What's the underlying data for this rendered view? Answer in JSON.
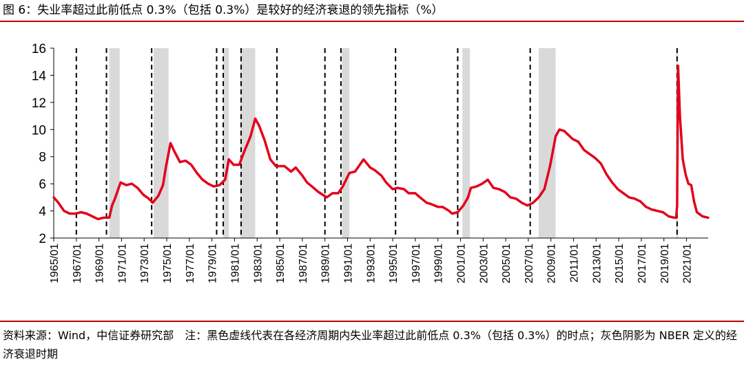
{
  "figure": {
    "title": "图 6：失业率超过此前低点 0.3%（包括 0.3%）是较好的经济衰退的领先指标（%）",
    "source_note": "资料来源：Wind，中信证券研究部　注：黑色虚线代表在各经济周期内失业率超过此前低点 0.3%（包括 0.3%）的时点；灰色阴影为 NBER 定义的经济衰退时期"
  },
  "colors": {
    "rule": "#c00000",
    "series_line": "#e3001b",
    "recession_shade": "#d9d9d9",
    "signal_line": "#000000"
  },
  "chart_data": {
    "type": "line",
    "title": "",
    "xlabel": "",
    "ylabel": "",
    "ylim": [
      2,
      16
    ],
    "yticks": [
      2,
      4,
      6,
      8,
      10,
      12,
      14,
      16
    ],
    "xlim": [
      "1965/01",
      "2022/12"
    ],
    "xticks": [
      "1965/01",
      "1967/01",
      "1969/01",
      "1971/01",
      "1973/01",
      "1975/01",
      "1977/01",
      "1979/01",
      "1981/01",
      "1983/01",
      "1985/01",
      "1987/01",
      "1989/01",
      "1991/01",
      "1993/01",
      "1995/01",
      "1997/01",
      "1999/01",
      "2001/01",
      "2003/01",
      "2005/01",
      "2007/01",
      "2009/01",
      "2011/01",
      "2013/01",
      "2015/01",
      "2017/01",
      "2019/01",
      "2021/01"
    ],
    "grid": false,
    "legend": "none",
    "series": [
      {
        "values": [
          {
            "x": "1965/01",
            "y": 5.0
          },
          {
            "x": "1965/06",
            "y": 4.6
          },
          {
            "x": "1965/12",
            "y": 4.0
          },
          {
            "x": "1966/06",
            "y": 3.8
          },
          {
            "x": "1966/12",
            "y": 3.8
          },
          {
            "x": "1967/06",
            "y": 3.9
          },
          {
            "x": "1967/12",
            "y": 3.8
          },
          {
            "x": "1968/06",
            "y": 3.6
          },
          {
            "x": "1968/12",
            "y": 3.4
          },
          {
            "x": "1969/06",
            "y": 3.5
          },
          {
            "x": "1969/12",
            "y": 3.5
          },
          {
            "x": "1970/03",
            "y": 4.4
          },
          {
            "x": "1970/06",
            "y": 4.9
          },
          {
            "x": "1970/09",
            "y": 5.5
          },
          {
            "x": "1970/12",
            "y": 6.1
          },
          {
            "x": "1971/06",
            "y": 5.9
          },
          {
            "x": "1971/12",
            "y": 6.0
          },
          {
            "x": "1972/06",
            "y": 5.7
          },
          {
            "x": "1972/12",
            "y": 5.2
          },
          {
            "x": "1973/06",
            "y": 4.9
          },
          {
            "x": "1973/10",
            "y": 4.6
          },
          {
            "x": "1974/04",
            "y": 5.1
          },
          {
            "x": "1974/09",
            "y": 5.9
          },
          {
            "x": "1974/12",
            "y": 7.2
          },
          {
            "x": "1975/05",
            "y": 9.0
          },
          {
            "x": "1975/09",
            "y": 8.4
          },
          {
            "x": "1976/03",
            "y": 7.6
          },
          {
            "x": "1976/09",
            "y": 7.7
          },
          {
            "x": "1977/03",
            "y": 7.4
          },
          {
            "x": "1977/09",
            "y": 6.8
          },
          {
            "x": "1978/03",
            "y": 6.3
          },
          {
            "x": "1978/09",
            "y": 6.0
          },
          {
            "x": "1979/03",
            "y": 5.8
          },
          {
            "x": "1979/09",
            "y": 5.9
          },
          {
            "x": "1980/03",
            "y": 6.3
          },
          {
            "x": "1980/07",
            "y": 7.8
          },
          {
            "x": "1980/12",
            "y": 7.4
          },
          {
            "x": "1981/06",
            "y": 7.4
          },
          {
            "x": "1981/12",
            "y": 8.5
          },
          {
            "x": "1982/06",
            "y": 9.5
          },
          {
            "x": "1982/11",
            "y": 10.8
          },
          {
            "x": "1983/03",
            "y": 10.3
          },
          {
            "x": "1983/09",
            "y": 9.2
          },
          {
            "x": "1984/03",
            "y": 7.8
          },
          {
            "x": "1984/09",
            "y": 7.3
          },
          {
            "x": "1985/06",
            "y": 7.3
          },
          {
            "x": "1986/01",
            "y": 6.9
          },
          {
            "x": "1986/06",
            "y": 7.2
          },
          {
            "x": "1987/01",
            "y": 6.6
          },
          {
            "x": "1987/06",
            "y": 6.1
          },
          {
            "x": "1988/01",
            "y": 5.7
          },
          {
            "x": "1988/06",
            "y": 5.4
          },
          {
            "x": "1989/03",
            "y": 5.0
          },
          {
            "x": "1989/09",
            "y": 5.3
          },
          {
            "x": "1990/03",
            "y": 5.3
          },
          {
            "x": "1990/08",
            "y": 5.8
          },
          {
            "x": "1991/03",
            "y": 6.8
          },
          {
            "x": "1991/09",
            "y": 6.9
          },
          {
            "x": "1992/06",
            "y": 7.8
          },
          {
            "x": "1993/01",
            "y": 7.2
          },
          {
            "x": "1993/06",
            "y": 7.0
          },
          {
            "x": "1994/01",
            "y": 6.6
          },
          {
            "x": "1994/06",
            "y": 6.1
          },
          {
            "x": "1995/01",
            "y": 5.6
          },
          {
            "x": "1995/06",
            "y": 5.7
          },
          {
            "x": "1996/01",
            "y": 5.6
          },
          {
            "x": "1996/06",
            "y": 5.3
          },
          {
            "x": "1997/01",
            "y": 5.3
          },
          {
            "x": "1997/06",
            "y": 5.0
          },
          {
            "x": "1998/01",
            "y": 4.6
          },
          {
            "x": "1998/06",
            "y": 4.5
          },
          {
            "x": "1999/01",
            "y": 4.3
          },
          {
            "x": "1999/06",
            "y": 4.3
          },
          {
            "x": "2000/01",
            "y": 4.0
          },
          {
            "x": "2000/04",
            "y": 3.8
          },
          {
            "x": "2000/10",
            "y": 3.9
          },
          {
            "x": "2001/04",
            "y": 4.4
          },
          {
            "x": "2001/09",
            "y": 5.0
          },
          {
            "x": "2001/12",
            "y": 5.7
          },
          {
            "x": "2002/06",
            "y": 5.8
          },
          {
            "x": "2002/12",
            "y": 6.0
          },
          {
            "x": "2003/06",
            "y": 6.3
          },
          {
            "x": "2003/12",
            "y": 5.7
          },
          {
            "x": "2004/06",
            "y": 5.6
          },
          {
            "x": "2004/12",
            "y": 5.4
          },
          {
            "x": "2005/06",
            "y": 5.0
          },
          {
            "x": "2005/12",
            "y": 4.9
          },
          {
            "x": "2006/06",
            "y": 4.6
          },
          {
            "x": "2006/12",
            "y": 4.4
          },
          {
            "x": "2007/06",
            "y": 4.6
          },
          {
            "x": "2007/12",
            "y": 5.0
          },
          {
            "x": "2008/06",
            "y": 5.6
          },
          {
            "x": "2008/12",
            "y": 7.3
          },
          {
            "x": "2009/06",
            "y": 9.5
          },
          {
            "x": "2009/10",
            "y": 10.0
          },
          {
            "x": "2010/03",
            "y": 9.9
          },
          {
            "x": "2010/09",
            "y": 9.5
          },
          {
            "x": "2010/12",
            "y": 9.3
          },
          {
            "x": "2011/06",
            "y": 9.1
          },
          {
            "x": "2011/12",
            "y": 8.5
          },
          {
            "x": "2012/06",
            "y": 8.2
          },
          {
            "x": "2012/12",
            "y": 7.9
          },
          {
            "x": "2013/06",
            "y": 7.5
          },
          {
            "x": "2013/12",
            "y": 6.7
          },
          {
            "x": "2014/06",
            "y": 6.1
          },
          {
            "x": "2014/12",
            "y": 5.6
          },
          {
            "x": "2015/06",
            "y": 5.3
          },
          {
            "x": "2015/12",
            "y": 5.0
          },
          {
            "x": "2016/06",
            "y": 4.9
          },
          {
            "x": "2016/12",
            "y": 4.7
          },
          {
            "x": "2017/06",
            "y": 4.3
          },
          {
            "x": "2017/12",
            "y": 4.1
          },
          {
            "x": "2018/06",
            "y": 4.0
          },
          {
            "x": "2018/12",
            "y": 3.9
          },
          {
            "x": "2019/06",
            "y": 3.6
          },
          {
            "x": "2019/12",
            "y": 3.5
          },
          {
            "x": "2020/02",
            "y": 3.5
          },
          {
            "x": "2020/03",
            "y": 4.4
          },
          {
            "x": "2020/04",
            "y": 14.7
          },
          {
            "x": "2020/06",
            "y": 11.0
          },
          {
            "x": "2020/09",
            "y": 7.8
          },
          {
            "x": "2020/12",
            "y": 6.7
          },
          {
            "x": "2021/03",
            "y": 6.0
          },
          {
            "x": "2021/06",
            "y": 5.9
          },
          {
            "x": "2021/09",
            "y": 4.7
          },
          {
            "x": "2021/12",
            "y": 3.9
          },
          {
            "x": "2022/06",
            "y": 3.6
          },
          {
            "x": "2022/12",
            "y": 3.5
          }
        ]
      }
    ],
    "recessions": [
      {
        "start": "1969/12",
        "end": "1970/11"
      },
      {
        "start": "1973/11",
        "end": "1975/03"
      },
      {
        "start": "1980/01",
        "end": "1980/07"
      },
      {
        "start": "1981/07",
        "end": "1982/11"
      },
      {
        "start": "1990/07",
        "end": "1991/03"
      },
      {
        "start": "2001/03",
        "end": "2001/11"
      },
      {
        "start": "2007/12",
        "end": "2009/06"
      },
      {
        "start": "2020/02",
        "end": "2020/04"
      }
    ],
    "signal_dates": [
      "1967/01",
      "1969/09",
      "1973/09",
      "1979/06",
      "1980/01",
      "1981/08",
      "1984/10",
      "1989/01",
      "1990/06",
      "1995/04",
      "2000/10",
      "2007/03",
      "2020/03"
    ]
  }
}
